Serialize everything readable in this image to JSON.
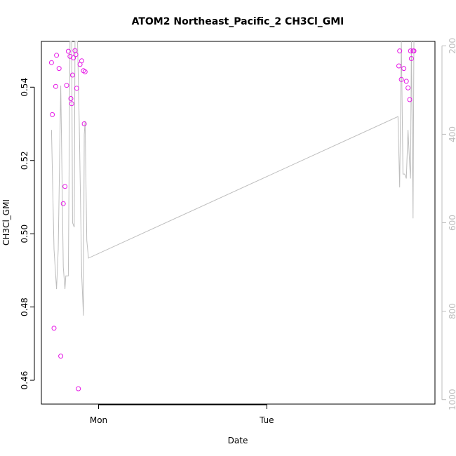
{
  "chart_data": {
    "type": "scatter",
    "title": "ATOM2 Northeast_Pacific_2 CH3Cl_GMI",
    "xlabel": "Date",
    "ylabel": "CH3Cl_GMI",
    "x_ticks": [
      {
        "label": "Mon",
        "value": 1.0
      },
      {
        "label": "Tue",
        "value": 2.0
      }
    ],
    "xlim": [
      0.66,
      3.0
    ],
    "ylim": [
      0.4535,
      0.5525
    ],
    "y_ticks": [
      0.46,
      0.48,
      0.5,
      0.52,
      0.54
    ],
    "y2_ticks": [
      200,
      400,
      600,
      800,
      1000
    ],
    "y2lim": [
      1010,
      190
    ],
    "colors": {
      "points": "#e619e6",
      "line": "#bdbdbd",
      "axis": "#000000",
      "axis2": "#bdbdbd"
    },
    "series": [
      {
        "kind": "points",
        "x": [
          0.72,
          0.725,
          0.735,
          0.745,
          0.75,
          0.765,
          0.775,
          0.79,
          0.8,
          0.81,
          0.82,
          0.83,
          0.835,
          0.84,
          0.845,
          0.85,
          0.86,
          0.865,
          0.87,
          0.88,
          0.89,
          0.9,
          0.91,
          0.915,
          0.92,
          2.785,
          2.79,
          2.8,
          2.815,
          2.83,
          2.84,
          2.85,
          2.855,
          2.86,
          2.87,
          2.875
        ],
        "y": [
          0.5467,
          0.5325,
          0.4742,
          0.5402,
          0.5487,
          0.5451,
          0.4666,
          0.5082,
          0.5129,
          0.5405,
          0.5498,
          0.5484,
          0.5369,
          0.5355,
          0.5433,
          0.548,
          0.55,
          0.5489,
          0.5397,
          0.4577,
          0.5462,
          0.5472,
          0.5445,
          0.53,
          0.5442,
          0.5458,
          0.5499,
          0.5421,
          0.5451,
          0.5416,
          0.5398,
          0.5366,
          0.5499,
          0.5478,
          0.5499,
          0.5499
        ]
      },
      {
        "kind": "line",
        "axis": "right",
        "x": [
          0.72,
          0.735,
          0.75,
          0.76,
          0.775,
          0.79,
          0.8,
          0.805,
          0.82,
          0.83,
          0.84,
          0.845,
          0.855,
          0.86,
          0.865,
          0.875,
          0.885,
          0.9,
          0.91,
          0.915,
          0.92,
          0.93,
          0.94,
          2.78,
          2.79,
          2.8,
          2.81,
          2.82,
          2.83,
          2.84,
          2.85,
          2.855,
          2.86,
          2.87,
          2.875
        ],
        "y": [
          390,
          660,
          750,
          660,
          290,
          700,
          750,
          720,
          720,
          190,
          190,
          600,
          610,
          190,
          190,
          190,
          370,
          720,
          810,
          400,
          370,
          640,
          680,
          360,
          520,
          190,
          490,
          490,
          500,
          390,
          470,
          500,
          190,
          590,
          190
        ]
      }
    ]
  }
}
